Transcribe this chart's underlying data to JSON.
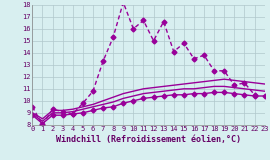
{
  "xlabel": "Windchill (Refroidissement éolien,°C)",
  "ylabel": "",
  "background_color": "#d8eff0",
  "line_color": "#990099",
  "grid_color": "#b0c8cc",
  "xlim": [
    0,
    23
  ],
  "ylim": [
    8,
    18
  ],
  "yticks": [
    8,
    9,
    10,
    11,
    12,
    13,
    14,
    15,
    16,
    17,
    18
  ],
  "xticks": [
    0,
    1,
    2,
    3,
    4,
    5,
    6,
    7,
    8,
    9,
    10,
    11,
    12,
    13,
    14,
    15,
    16,
    17,
    18,
    19,
    20,
    21,
    22,
    23
  ],
  "series": [
    {
      "x": [
        0,
        1,
        2,
        3,
        4,
        5,
        6,
        7,
        8,
        9,
        10,
        11,
        12,
        13,
        14,
        15,
        16,
        17,
        18,
        19,
        20,
        21,
        22
      ],
      "y": [
        9.5,
        8.0,
        9.3,
        9.1,
        8.9,
        9.8,
        10.8,
        13.3,
        15.3,
        18.2,
        16.0,
        16.7,
        15.0,
        16.6,
        14.1,
        14.8,
        13.5,
        13.8,
        12.5,
        12.5,
        11.3,
        11.5,
        10.5
      ],
      "style": "dotted",
      "marker": "D",
      "markersize": 2.5,
      "linewidth": 1.0
    },
    {
      "x": [
        0,
        1,
        2,
        3,
        4,
        5,
        6,
        7,
        8,
        9,
        10,
        11,
        12,
        13,
        14,
        15,
        16,
        17,
        18,
        19,
        20,
        21,
        22,
        23
      ],
      "y": [
        9.0,
        8.5,
        9.2,
        9.2,
        9.3,
        9.5,
        9.7,
        10.0,
        10.3,
        10.6,
        10.8,
        11.0,
        11.1,
        11.2,
        11.3,
        11.4,
        11.5,
        11.6,
        11.7,
        11.8,
        11.7,
        11.6,
        11.5,
        11.4
      ],
      "style": "solid",
      "marker": null,
      "markersize": 0,
      "linewidth": 1.0
    },
    {
      "x": [
        0,
        1,
        2,
        3,
        4,
        5,
        6,
        7,
        8,
        9,
        10,
        11,
        12,
        13,
        14,
        15,
        16,
        17,
        18,
        19,
        20,
        21,
        22,
        23
      ],
      "y": [
        8.9,
        8.3,
        9.0,
        9.0,
        9.1,
        9.3,
        9.5,
        9.7,
        9.9,
        10.2,
        10.4,
        10.6,
        10.7,
        10.8,
        10.9,
        11.0,
        11.0,
        11.1,
        11.2,
        11.2,
        11.1,
        11.0,
        10.9,
        10.8
      ],
      "style": "solid",
      "marker": null,
      "markersize": 0,
      "linewidth": 1.0
    },
    {
      "x": [
        0,
        1,
        2,
        3,
        4,
        5,
        6,
        7,
        8,
        9,
        10,
        11,
        12,
        13,
        14,
        15,
        16,
        17,
        18,
        19,
        20,
        21,
        22,
        23
      ],
      "y": [
        8.8,
        8.1,
        8.8,
        8.8,
        8.9,
        9.0,
        9.2,
        9.4,
        9.5,
        9.8,
        10.0,
        10.2,
        10.3,
        10.4,
        10.5,
        10.5,
        10.6,
        10.6,
        10.7,
        10.7,
        10.6,
        10.5,
        10.4,
        10.4
      ],
      "style": "solid",
      "marker": "D",
      "markersize": 2.5,
      "linewidth": 1.0
    }
  ]
}
